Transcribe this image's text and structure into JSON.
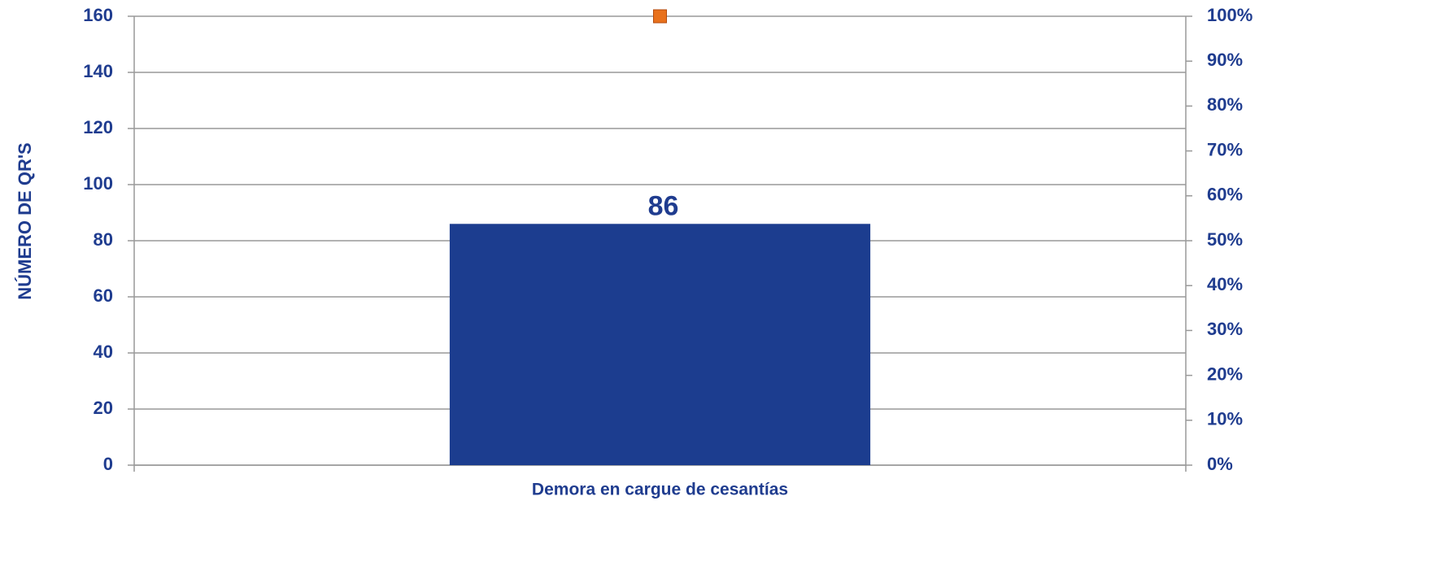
{
  "chart_data": {
    "type": "bar",
    "ylabel": "NÚMERO DE QR'S",
    "categories": [
      "Demora en cargue de cesantías"
    ],
    "series": [
      {
        "color": "#1c3d8f",
        "values": [
          86
        ]
      },
      {
        "type": "line",
        "axis": "y2",
        "color": "#e8711c",
        "values": [
          100
        ]
      }
    ],
    "ylim": [
      0,
      160
    ],
    "yticks": [
      0,
      20,
      40,
      60,
      80,
      100,
      120,
      140,
      160
    ],
    "y2lim": [
      0,
      100
    ],
    "y2ticks": [
      {
        "value": 0,
        "label": "0%"
      },
      {
        "value": 10,
        "label": "10%"
      },
      {
        "value": 20,
        "label": "20%"
      },
      {
        "value": 30,
        "label": "30%"
      },
      {
        "value": 40,
        "label": "40%"
      },
      {
        "value": 50,
        "label": "50%"
      },
      {
        "value": 60,
        "label": "60%"
      },
      {
        "value": 70,
        "label": "70%"
      },
      {
        "value": 80,
        "label": "80%"
      },
      {
        "value": 90,
        "label": "90%"
      },
      {
        "value": 100,
        "label": "100%"
      }
    ],
    "grid": true
  }
}
